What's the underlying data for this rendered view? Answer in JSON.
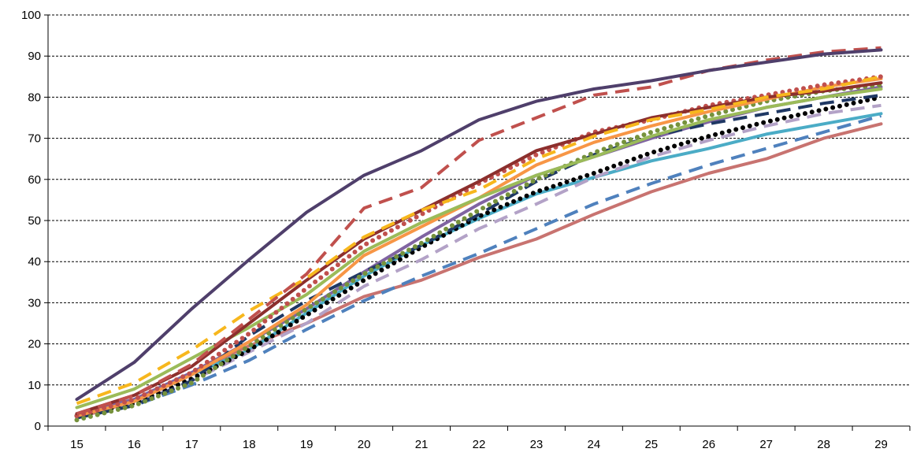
{
  "chart_data": {
    "type": "line",
    "title": "",
    "xlabel": "",
    "ylabel": "",
    "x": [
      15,
      16,
      17,
      18,
      19,
      20,
      21,
      22,
      23,
      24,
      25,
      26,
      27,
      28,
      29
    ],
    "ylim": [
      0,
      100
    ],
    "yticks": [
      0,
      10,
      20,
      30,
      40,
      50,
      60,
      70,
      80,
      90,
      100
    ],
    "grid": "horizontal dashed",
    "legend": "none",
    "series": [
      {
        "color": "#4f3f6b",
        "style": "solid",
        "values": [
          6.5,
          15.5,
          28.5,
          40.5,
          52,
          61,
          67,
          74.5,
          79,
          82,
          84,
          86.5,
          88.5,
          90.5,
          91.5
        ]
      },
      {
        "color": "#c0504d",
        "style": "dashed",
        "values": [
          3,
          7.5,
          15,
          26,
          37,
          53,
          58,
          69.5,
          75,
          80.5,
          82.5,
          86.5,
          89,
          91,
          92
        ]
      },
      {
        "color": "#f7b71d",
        "style": "dashed",
        "values": [
          5.5,
          10.5,
          18.5,
          28,
          36,
          46,
          52.5,
          57.5,
          65,
          70.5,
          74.5,
          77,
          80,
          82,
          85
        ]
      },
      {
        "color": "#8c2f2d",
        "style": "solid",
        "values": [
          3,
          7.5,
          14.5,
          25,
          35.5,
          45.5,
          52.5,
          59.5,
          67,
          71,
          75,
          77.5,
          80,
          81.5,
          83.5
        ]
      },
      {
        "color": "#c0504d",
        "style": "dotted",
        "values": [
          2.5,
          6.5,
          13,
          22.5,
          33.5,
          44,
          51.5,
          59,
          66,
          71.5,
          74.5,
          78,
          80.5,
          83,
          85
        ]
      },
      {
        "color": "#9bbb59",
        "style": "solid",
        "values": [
          4.5,
          9,
          16.5,
          24,
          32,
          42.5,
          49.5,
          55.5,
          61,
          65.5,
          70.5,
          74.5,
          77.5,
          80,
          82
        ]
      },
      {
        "color": "#f79646",
        "style": "solid",
        "values": [
          2.5,
          6,
          12.5,
          20.5,
          29.5,
          41.5,
          48.5,
          55.5,
          63.5,
          69,
          73,
          76.5,
          79.5,
          82.5,
          84.5
        ]
      },
      {
        "color": "#76923c",
        "style": "dotted",
        "values": [
          1.5,
          5,
          10.5,
          19.5,
          28.5,
          37,
          44.5,
          52.5,
          60,
          66.5,
          71.5,
          75.5,
          79,
          81.5,
          83
        ]
      },
      {
        "color": "#1f3864",
        "style": "dashed",
        "values": [
          2,
          5,
          11,
          22,
          30.5,
          37.5,
          44,
          51.5,
          59.5,
          66,
          70.5,
          73.5,
          76,
          78.5,
          80.5
        ]
      },
      {
        "color": "#8064a2",
        "style": "solid",
        "values": [
          3,
          6.5,
          13,
          20.5,
          28.5,
          37.5,
          46,
          54,
          61,
          65.5,
          70,
          74,
          77.5,
          80,
          82.5
        ]
      },
      {
        "color": "#000000",
        "style": "dotted",
        "values": [
          2.5,
          5.5,
          11.5,
          18.5,
          27,
          35.5,
          43.5,
          51,
          57,
          61.5,
          66.5,
          70.5,
          74,
          77,
          80
        ]
      },
      {
        "color": "#b3a2c7",
        "style": "dashed",
        "values": [
          2,
          5.5,
          11,
          18,
          25,
          34,
          40.5,
          48,
          54,
          60.5,
          65.5,
          69.5,
          73,
          76,
          78
        ]
      },
      {
        "color": "#4bacc6",
        "style": "solid",
        "values": [
          2.5,
          6,
          12.5,
          18.5,
          27.5,
          36.5,
          44,
          50.5,
          56.5,
          60.5,
          64.5,
          67.5,
          71,
          73.5,
          76
        ]
      },
      {
        "color": "#4f81bd",
        "style": "dashed",
        "values": [
          2,
          5,
          10,
          16,
          23.5,
          30.5,
          36.5,
          42,
          48,
          54,
          59,
          63.5,
          67.5,
          71.5,
          75.5
        ]
      },
      {
        "color": "#c87370",
        "style": "solid",
        "values": [
          2,
          6,
          13,
          19.5,
          25,
          31.5,
          35.5,
          41,
          45.5,
          51.5,
          57,
          61.5,
          65,
          70,
          73.5
        ]
      }
    ]
  }
}
